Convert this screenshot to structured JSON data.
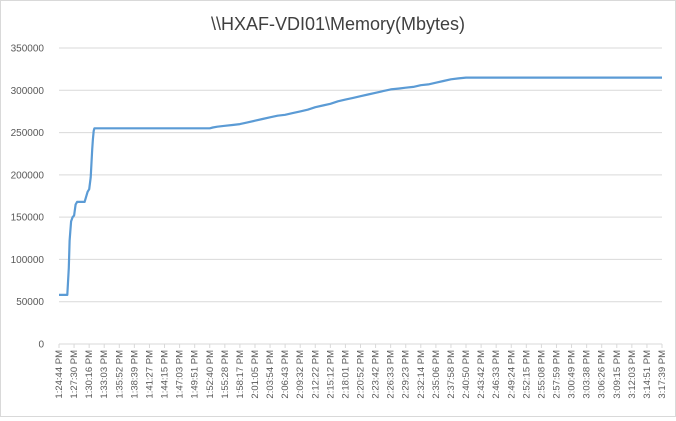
{
  "chart_data": {
    "type": "line",
    "title": "\\\\HXAF-VDI01\\Memory(Mbytes)",
    "xlabel": "",
    "ylabel": "",
    "ylim": [
      0,
      350000
    ],
    "yticks": [
      0,
      50000,
      100000,
      150000,
      200000,
      250000,
      300000,
      350000
    ],
    "ytick_labels": [
      "0",
      "50000",
      "100000",
      "150000",
      "200000",
      "250000",
      "300000",
      "350000"
    ],
    "xtick_labels": [
      "1:24:44 PM",
      "1:27:30 PM",
      "1:30:16 PM",
      "1:33:03 PM",
      "1:35:52 PM",
      "1:38:39 PM",
      "1:41:27 PM",
      "1:44:15 PM",
      "1:47:03 PM",
      "1:49:51 PM",
      "1:52:40 PM",
      "1:55:28 PM",
      "1:58:17 PM",
      "2:01:05 PM",
      "2:03:54 PM",
      "2:06:43 PM",
      "2:09:32 PM",
      "2:12:22 PM",
      "2:15:12 PM",
      "2:18:01 PM",
      "2:20:52 PM",
      "2:23:42 PM",
      "2:26:33 PM",
      "2:29:23 PM",
      "2:32:14 PM",
      "2:35:06 PM",
      "2:37:58 PM",
      "2:40:50 PM",
      "2:43:42 PM",
      "2:46:33 PM",
      "2:49:24 PM",
      "2:52:15 PM",
      "2:55:08 PM",
      "2:57:59 PM",
      "3:00:49 PM",
      "3:03:38 PM",
      "3:06:26 PM",
      "3:09:15 PM",
      "3:12:03 PM",
      "3:14:51 PM",
      "3:17:39 PM"
    ],
    "grid": true,
    "legend": "none",
    "line_color": "#5b9bd5",
    "series": [
      {
        "x": [
          0,
          0.5,
          0.55,
          0.65,
          0.7,
          0.75,
          0.8,
          0.9,
          1.0,
          1.1,
          1.2,
          1.3,
          1.5,
          1.7,
          1.9,
          2.0,
          2.1,
          2.2,
          2.25,
          2.3,
          2.35,
          2.4,
          2.5,
          3,
          3.5,
          4,
          5,
          6,
          7,
          8,
          9,
          10,
          10.2,
          10.5,
          11,
          11.5,
          12,
          12.5,
          13,
          13.5,
          14,
          14.5,
          15,
          15.5,
          16,
          16.5,
          17,
          17.5,
          18,
          18.5,
          19,
          19.5,
          20,
          20.5,
          21,
          21.5,
          22,
          22.5,
          23,
          23.5,
          24,
          24.5,
          25,
          25.5,
          26,
          26.5,
          27,
          27.5,
          28,
          30,
          32,
          34,
          36,
          38,
          40
        ],
        "values": [
          58000,
          58000,
          58000,
          90000,
          122000,
          133000,
          145000,
          150000,
          152000,
          165000,
          168000,
          168000,
          168000,
          168000,
          180000,
          183000,
          197000,
          230000,
          242000,
          252000,
          255000,
          255000,
          255000,
          255000,
          255000,
          255000,
          255000,
          255000,
          255000,
          255000,
          255000,
          255000,
          256000,
          257000,
          258000,
          259000,
          260000,
          262000,
          264000,
          266000,
          268000,
          270000,
          271000,
          273000,
          275000,
          277000,
          280000,
          282000,
          284000,
          287000,
          289000,
          291000,
          293000,
          295000,
          297000,
          299000,
          301000,
          302000,
          303000,
          304000,
          306000,
          307000,
          309000,
          311000,
          313000,
          314000,
          315000,
          315000,
          315000,
          315000,
          315000,
          315000,
          315000,
          315000,
          315000
        ]
      }
    ]
  }
}
